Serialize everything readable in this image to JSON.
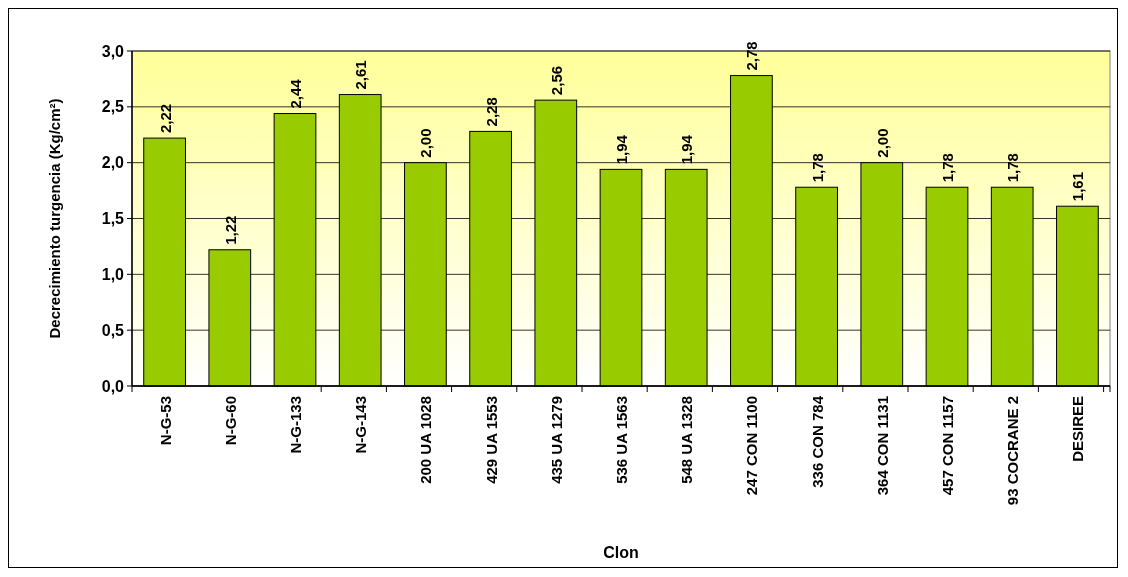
{
  "chart_data": {
    "type": "bar",
    "xlabel": "Clon",
    "ylabel": "Decrecimiento turgencia (Kg/cm²)",
    "categories": [
      "N-G-53",
      "N-G-60",
      "N-G-133",
      "N-G-143",
      "200 UA 1028",
      "429 UA 1553",
      "435 UA 1279",
      "536 UA 1563",
      "548 UA 1328",
      "247 CON 1100",
      "336 CON 784",
      "364 CON 1131",
      "457 CON 1157",
      "93 COCRANE 2",
      "DESIREE"
    ],
    "values": [
      2.22,
      1.22,
      2.44,
      2.61,
      2.0,
      2.28,
      2.56,
      1.94,
      1.94,
      2.78,
      1.78,
      2.0,
      1.78,
      1.78,
      1.61
    ],
    "value_labels": [
      "2,22",
      "1,22",
      "2,44",
      "2,61",
      "2,00",
      "2,28",
      "2,56",
      "1,94",
      "1,94",
      "2,78",
      "1,78",
      "2,00",
      "1,78",
      "1,78",
      "1,61"
    ],
    "color": "#99cc00",
    "ylim": [
      0,
      3
    ],
    "yticks": [
      {
        "value": 0,
        "label": "0,0"
      },
      {
        "value": 0.5,
        "label": "0,5"
      },
      {
        "value": 1,
        "label": "1,0"
      },
      {
        "value": 1.5,
        "label": "1,5"
      },
      {
        "value": 2,
        "label": "2,0"
      },
      {
        "value": 2.5,
        "label": "2,5"
      },
      {
        "value": 3,
        "label": "3,0"
      }
    ],
    "grid": "y"
  }
}
